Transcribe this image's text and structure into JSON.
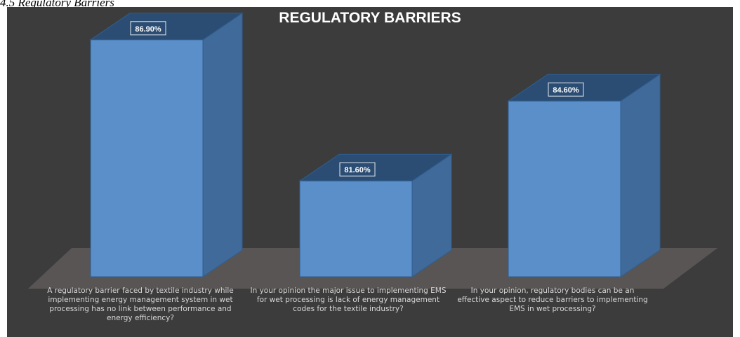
{
  "caption": "4.5 Regulatory Barriers",
  "chart_data": {
    "type": "bar",
    "style": "3d-column",
    "title": "REGULATORY BARRIERS",
    "categories": [
      "A regulatory barrier faced by textile industry while implementing energy management system in wet processing has no link between performance and energy efficiency?",
      "In your opinion the major issue to implementing EMS for wet processing is lack of energy management codes for the textile industry?",
      "In your opinion, regulatory bodies can be an effective aspect to reduce barriers to implementing EMS in wet processing?"
    ],
    "values": [
      86.9,
      81.6,
      84.6
    ],
    "data_labels": [
      "86.90%",
      "81.60%",
      "84.60%"
    ],
    "ylim": [
      78,
      90
    ],
    "grid": false,
    "legend": "none",
    "colors": {
      "background": "#3c3c3c",
      "floor": "#5a5555",
      "bar_front": "#5b8fc9",
      "bar_side": "#3f6a99",
      "bar_top": "#2c4d73",
      "bar_edge": "#2f5d8f",
      "title": "#ffffff",
      "label_text": "#d8d8d8"
    }
  }
}
